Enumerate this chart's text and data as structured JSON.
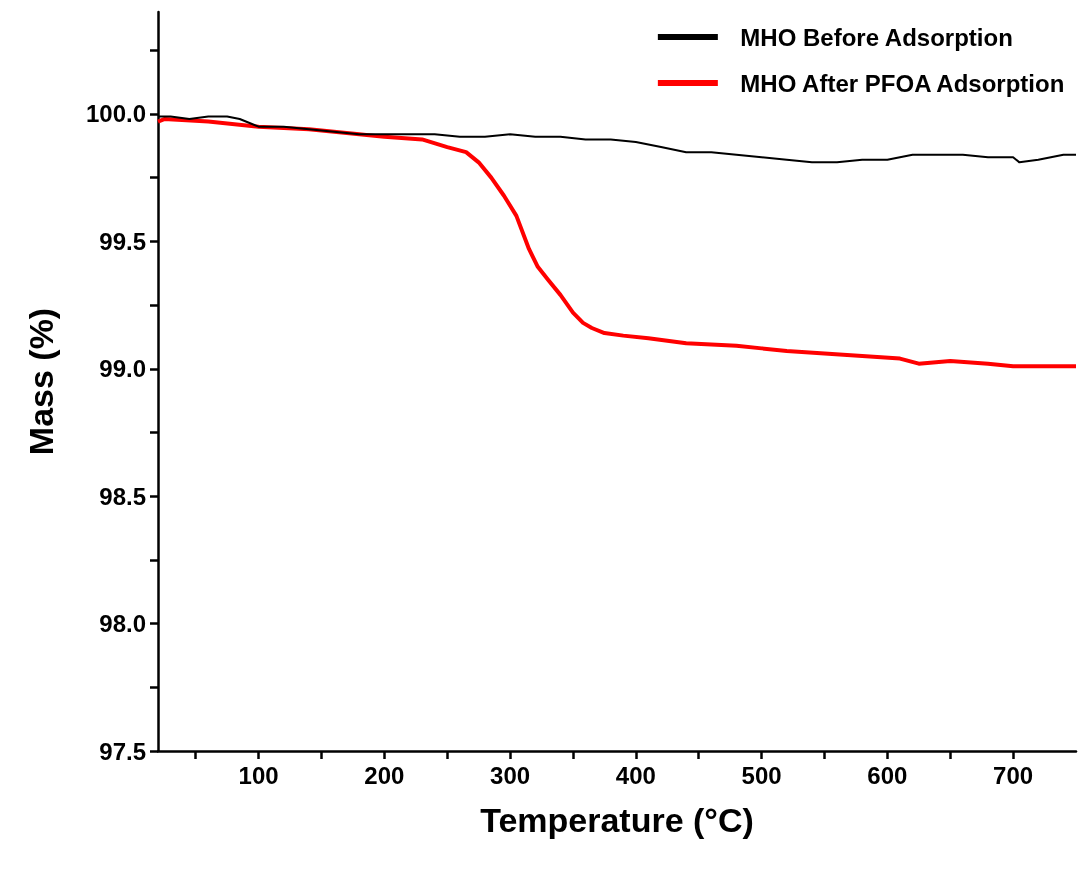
{
  "chart_data": {
    "type": "line",
    "xlabel": "Temperature (°C)",
    "ylabel": "Mass (%)",
    "xlim": [
      20,
      750
    ],
    "ylim": [
      97.5,
      100.4
    ],
    "xticks": [
      {
        "value": 50,
        "label": null
      },
      100,
      {
        "value": 150,
        "label": null
      },
      200,
      {
        "value": 250,
        "label": null
      },
      300,
      {
        "value": 350,
        "label": null
      },
      400,
      {
        "value": 450,
        "label": null
      },
      500,
      {
        "value": 550,
        "label": null
      },
      600,
      {
        "value": 650,
        "label": null
      },
      700
    ],
    "yticks": [
      {
        "value": 97.5,
        "label": "97.5"
      },
      {
        "value": 97.75,
        "label": null
      },
      {
        "value": 98,
        "label": "98.0"
      },
      {
        "value": 98.25,
        "label": null
      },
      {
        "value": 98.5,
        "label": "98.5"
      },
      {
        "value": 98.75,
        "label": null
      },
      {
        "value": 99,
        "label": "99.0"
      },
      {
        "value": 99.25,
        "label": null
      },
      {
        "value": 99.5,
        "label": "99.5"
      },
      {
        "value": 99.75,
        "label": null
      },
      {
        "value": 100,
        "label": "100.0"
      },
      {
        "value": 100.25,
        "label": null
      }
    ],
    "grid": false,
    "legend": "top right",
    "marker": "none",
    "line_style": "solid",
    "series": [
      {
        "name": "MHO Before Adsorption",
        "color": "#000000",
        "x": [
          20,
          30,
          45,
          60,
          75,
          85,
          100,
          120,
          140,
          160,
          180,
          200,
          220,
          240,
          260,
          280,
          300,
          320,
          340,
          360,
          380,
          400,
          420,
          440,
          460,
          480,
          500,
          520,
          540,
          560,
          580,
          600,
          620,
          640,
          660,
          680,
          700,
          705,
          720,
          740,
          750
        ],
        "values": [
          99.99,
          99.99,
          99.98,
          99.99,
          99.99,
          99.98,
          99.95,
          99.95,
          99.94,
          99.93,
          99.92,
          99.92,
          99.92,
          99.92,
          99.91,
          99.91,
          99.92,
          99.91,
          99.91,
          99.9,
          99.9,
          99.89,
          99.87,
          99.85,
          99.85,
          99.84,
          99.83,
          99.82,
          99.81,
          99.81,
          99.82,
          99.82,
          99.84,
          99.84,
          99.84,
          99.83,
          99.83,
          99.81,
          99.82,
          99.84,
          99.84
        ]
      },
      {
        "name": "MHO After PFOA Adsorption",
        "color": "#ff0000",
        "x": [
          20,
          25,
          60,
          100,
          140,
          180,
          200,
          230,
          250,
          265,
          275,
          285,
          295,
          305,
          315,
          322,
          330,
          340,
          350,
          358,
          365,
          375,
          390,
          410,
          440,
          480,
          500,
          520,
          550,
          580,
          610,
          625,
          650,
          680,
          700,
          720,
          750
        ],
        "values": [
          99.97,
          99.98,
          99.97,
          99.95,
          99.94,
          99.92,
          99.91,
          99.9,
          99.87,
          99.85,
          99.81,
          99.75,
          99.68,
          99.6,
          99.47,
          99.4,
          99.35,
          99.29,
          99.22,
          99.18,
          99.16,
          99.14,
          99.13,
          99.12,
          99.1,
          99.09,
          99.08,
          99.07,
          99.06,
          99.05,
          99.04,
          99.02,
          99.03,
          99.02,
          99.01,
          99.01,
          99.01
        ]
      }
    ]
  }
}
